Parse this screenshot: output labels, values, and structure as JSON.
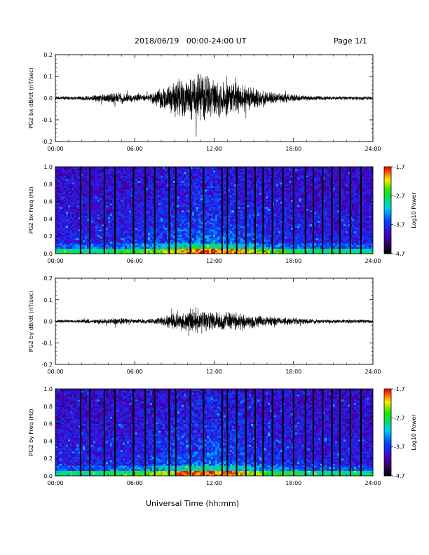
{
  "header": {
    "date_range": "2018/06/19   00:00-24:00 UT",
    "page": "Page 1/1"
  },
  "footer": {
    "xlabel": "Universal Time (hh:mm)"
  },
  "chart_data": [
    {
      "type": "line",
      "id": "bx_timeseries",
      "ylabel": "PG2 bx dB/dt (nT/sec)",
      "x_ticks": [
        "00:00",
        "06:00",
        "12:00",
        "18:00",
        "24:00"
      ],
      "x_range_hours": [
        0,
        24
      ],
      "ylim": [
        -0.2,
        0.2
      ],
      "y_ticks": [
        -0.2,
        -0.1,
        0.0,
        0.1,
        0.2
      ],
      "y_tick_labels": [
        "-0.2",
        "-0.1",
        "0.0",
        "0.1",
        "0.2"
      ],
      "envelope_hours": [
        0,
        1,
        2,
        3,
        4,
        5,
        6,
        7,
        8,
        9,
        10,
        11,
        12,
        13,
        14,
        15,
        16,
        17,
        18,
        19,
        20,
        21,
        22,
        23,
        24
      ],
      "envelope_amplitude": [
        0.01,
        0.01,
        0.012,
        0.018,
        0.025,
        0.03,
        0.02,
        0.02,
        0.05,
        0.09,
        0.11,
        0.13,
        0.1,
        0.09,
        0.08,
        0.06,
        0.04,
        0.025,
        0.02,
        0.015,
        0.012,
        0.01,
        0.01,
        0.01,
        0.01
      ],
      "color": "#000000"
    },
    {
      "type": "heatmap",
      "id": "bx_spectrogram",
      "ylabel": "PG2 bx Freq (Hz)",
      "x_ticks": [
        "00:00",
        "06:00",
        "12:00",
        "18:00",
        "24:00"
      ],
      "x_range_hours": [
        0,
        24
      ],
      "ylim": [
        0.0,
        1.0
      ],
      "y_ticks": [
        0.0,
        0.2,
        0.4,
        0.6,
        0.8,
        1.0
      ],
      "y_tick_labels": [
        "0.0",
        "0.2",
        "0.4",
        "0.6",
        "0.8",
        "1.0"
      ],
      "colorbar": {
        "label": "Log10 Power",
        "range": [
          -4.7,
          -1.7
        ],
        "ticks": [
          -1.7,
          -2.7,
          -3.7,
          -4.7
        ],
        "tick_labels": [
          "-1.7",
          "-2.7",
          "-3.7",
          "-4.7"
        ]
      },
      "data_gap_hours": [
        1.9,
        2.6,
        3.7,
        4.5,
        5.9,
        6.8,
        7.5,
        8.6,
        9.1,
        10.2,
        11.2,
        12.6,
        13.0,
        13.7,
        14.4,
        15.1,
        15.7,
        16.4,
        17.2,
        18.0,
        18.9,
        19.5,
        20.2,
        20.9,
        21.5,
        22.3,
        23.1
      ],
      "activity_peak_hours": [
        8,
        15
      ],
      "colormap": "rainbow"
    },
    {
      "type": "line",
      "id": "by_timeseries",
      "ylabel": "PG2 by dB/dt (nT/sec)",
      "x_ticks": [
        "00:00",
        "06:00",
        "12:00",
        "18:00",
        "24:00"
      ],
      "x_range_hours": [
        0,
        24
      ],
      "ylim": [
        -0.2,
        0.2
      ],
      "y_ticks": [
        -0.2,
        -0.1,
        0.0,
        0.1,
        0.2
      ],
      "y_tick_labels": [
        "-0.2",
        "-0.1",
        "0.0",
        "0.1",
        "0.2"
      ],
      "envelope_hours": [
        0,
        1,
        2,
        3,
        4,
        5,
        6,
        7,
        8,
        9,
        10,
        11,
        12,
        13,
        14,
        15,
        16,
        17,
        18,
        19,
        20,
        21,
        22,
        23,
        24
      ],
      "envelope_amplitude": [
        0.008,
        0.008,
        0.01,
        0.012,
        0.015,
        0.02,
        0.012,
        0.012,
        0.02,
        0.05,
        0.06,
        0.065,
        0.055,
        0.05,
        0.045,
        0.035,
        0.025,
        0.02,
        0.02,
        0.015,
        0.012,
        0.01,
        0.01,
        0.01,
        0.008
      ],
      "color": "#000000"
    },
    {
      "type": "heatmap",
      "id": "by_spectrogram",
      "ylabel": "PG2 by Freq (Hz)",
      "x_ticks": [
        "00:00",
        "06:00",
        "12:00",
        "18:00",
        "24:00"
      ],
      "x_range_hours": [
        0,
        24
      ],
      "ylim": [
        0.0,
        1.0
      ],
      "y_ticks": [
        0.0,
        0.2,
        0.4,
        0.6,
        0.8,
        1.0
      ],
      "y_tick_labels": [
        "0.0",
        "0.2",
        "0.4",
        "0.6",
        "0.8",
        "1.0"
      ],
      "colorbar": {
        "label": "Log10 Power",
        "range": [
          -4.7,
          -1.7
        ],
        "ticks": [
          -1.7,
          -2.7,
          -3.7,
          -4.7
        ],
        "tick_labels": [
          "-1.7",
          "-2.7",
          "-3.7",
          "-4.7"
        ]
      },
      "data_gap_hours": [
        1.9,
        2.6,
        3.7,
        4.5,
        5.9,
        6.8,
        7.5,
        8.6,
        9.1,
        10.2,
        11.2,
        12.6,
        13.0,
        13.7,
        14.4,
        15.1,
        15.7,
        16.4,
        17.2,
        18.0,
        18.9,
        19.5,
        20.2,
        20.9,
        21.5,
        22.3,
        23.1
      ],
      "activity_peak_hours": [
        8,
        15
      ],
      "colormap": "rainbow"
    }
  ]
}
